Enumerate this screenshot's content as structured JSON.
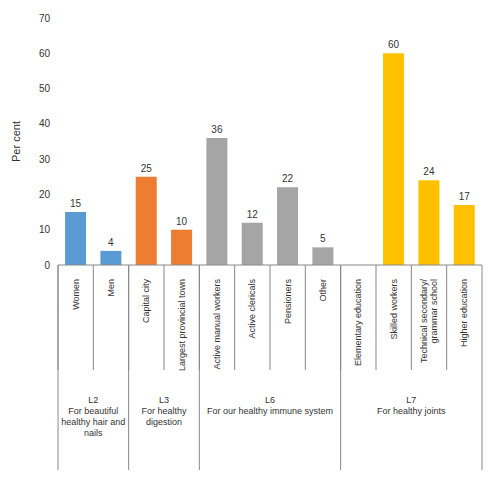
{
  "chart_data": {
    "type": "bar",
    "categories": [
      "Women",
      "Men",
      "Capital city",
      "Largest provincial town",
      "Active manual workers",
      "Active clericals",
      "Pensioners",
      "Other",
      "Elementary education",
      "Skilled workers",
      "Technical secondary/ grammar school",
      "Higher education"
    ],
    "values": [
      15,
      4,
      25,
      10,
      36,
      12,
      22,
      5,
      0,
      60,
      24,
      17
    ],
    "colors": [
      "#5b9bd5",
      "#5b9bd5",
      "#ed7d31",
      "#ed7d31",
      "#a5a5a5",
      "#a5a5a5",
      "#a5a5a5",
      "#a5a5a5",
      "#ffc000",
      "#ffc000",
      "#ffc000",
      "#ffc000"
    ],
    "y_label": "Per cent",
    "ylim": [
      0,
      70
    ],
    "yticks": [
      0,
      10,
      20,
      30,
      40,
      50,
      60,
      70
    ],
    "grid": false,
    "data_labels": true,
    "groups": [
      {
        "name": "L2",
        "label": "For beautiful healthy hair and nails",
        "categories": [
          "Women",
          "Men"
        ]
      },
      {
        "name": "L3",
        "label": "For healthy digestion",
        "categories": [
          "Capital city",
          "Largest provincial town"
        ]
      },
      {
        "name": "L6",
        "label": "For our healthy immune system",
        "categories": [
          "Active manual workers",
          "Active clericals",
          "Pensioners",
          "Other"
        ]
      },
      {
        "name": "L7",
        "label": "For healthy joints",
        "categories": [
          "Elementary education",
          "Skilled workers",
          "Technical secondary/ grammar school",
          "Higher education"
        ]
      }
    ]
  }
}
